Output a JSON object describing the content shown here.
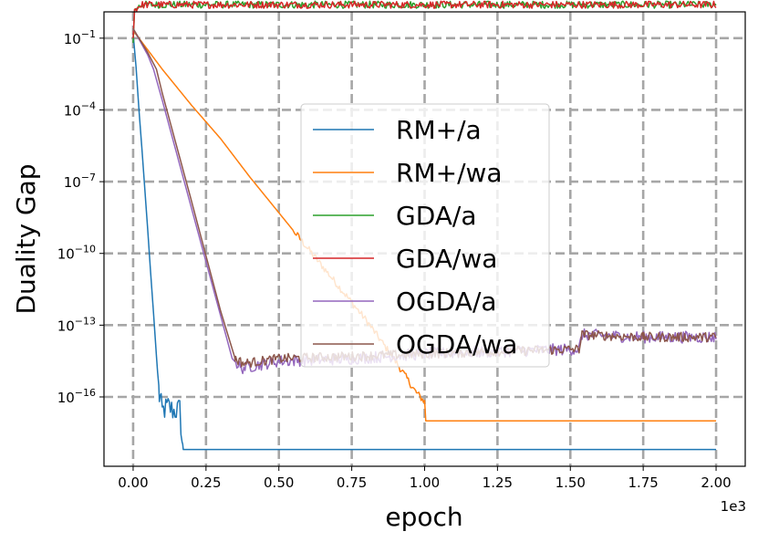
{
  "chart_data": {
    "type": "line",
    "xlabel": "epoch",
    "ylabel": "Duality Gap",
    "x_scale_label": "1e3",
    "yscale": "log",
    "xlim": [
      -0.1,
      2.1
    ],
    "ylim_log10": [
      -18.9,
      0.1
    ],
    "x_ticks": [
      0.0,
      0.25,
      0.5,
      0.75,
      1.0,
      1.25,
      1.5,
      1.75,
      2.0
    ],
    "x_tick_labels": [
      "0.00",
      "0.25",
      "0.50",
      "0.75",
      "1.00",
      "1.25",
      "1.50",
      "1.75",
      "2.00"
    ],
    "y_ticks_log10": [
      -1,
      -4,
      -7,
      -10,
      -13,
      -16
    ],
    "y_tick_labels": [
      {
        "base": "10",
        "exp": "−1"
      },
      {
        "base": "10",
        "exp": "−4"
      },
      {
        "base": "10",
        "exp": "−7"
      },
      {
        "base": "10",
        "exp": "−10"
      },
      {
        "base": "10",
        "exp": "−13"
      },
      {
        "base": "10",
        "exp": "−16"
      }
    ],
    "grid": true,
    "legend_position": "center",
    "series": [
      {
        "name": "RM+/a",
        "color": "#1f77b4",
        "log10_points": [
          [
            0.0,
            -0.8
          ],
          [
            0.01,
            -2.2
          ],
          [
            0.02,
            -4.0
          ],
          [
            0.03,
            -5.6
          ],
          [
            0.04,
            -7.3
          ],
          [
            0.05,
            -9.0
          ],
          [
            0.06,
            -10.8
          ],
          [
            0.07,
            -12.5
          ],
          [
            0.08,
            -14.3
          ],
          [
            0.09,
            -16.0
          ],
          [
            0.1,
            -16.6
          ],
          [
            0.12,
            -16.4
          ],
          [
            0.14,
            -16.6
          ],
          [
            0.16,
            -16.5
          ],
          [
            0.17,
            -18.2
          ],
          [
            2.0,
            -18.2
          ]
        ],
        "noise": [
          [
            0.085,
            0.17,
            0.5
          ]
        ]
      },
      {
        "name": "RM+/wa",
        "color": "#ff7f0e",
        "log10_points": [
          [
            0.0,
            -0.7
          ],
          [
            0.02,
            -1.0
          ],
          [
            0.1,
            -2.3
          ],
          [
            0.2,
            -3.8
          ],
          [
            0.3,
            -5.2
          ],
          [
            0.4,
            -6.8
          ],
          [
            0.5,
            -8.3
          ],
          [
            0.6,
            -9.8
          ],
          [
            0.7,
            -11.3
          ],
          [
            0.8,
            -12.8
          ],
          [
            0.9,
            -14.5
          ],
          [
            0.97,
            -15.8
          ],
          [
            1.0,
            -16.2
          ],
          [
            1.0,
            -17.0
          ],
          [
            2.0,
            -17.0
          ]
        ],
        "noise": [
          [
            0.55,
            1.0,
            0.15
          ]
        ]
      },
      {
        "name": "GDA/a",
        "color": "#2ca02c",
        "log10_points": [
          [
            0.0,
            -1.2
          ],
          [
            0.005,
            0.2
          ],
          [
            0.03,
            0.4
          ],
          [
            2.0,
            0.4
          ]
        ],
        "noise": [
          [
            0.01,
            2.0,
            0.15
          ]
        ]
      },
      {
        "name": "GDA/wa",
        "color": "#d62728",
        "log10_points": [
          [
            0.0,
            -1.0
          ],
          [
            0.005,
            0.2
          ],
          [
            0.03,
            0.4
          ],
          [
            2.0,
            0.4
          ]
        ],
        "noise": [
          [
            0.01,
            2.0,
            0.15
          ]
        ]
      },
      {
        "name": "OGDA/a",
        "color": "#9467bd",
        "log10_points": [
          [
            0.0,
            -0.6
          ],
          [
            0.05,
            -1.7
          ],
          [
            0.07,
            -2.3
          ],
          [
            0.1,
            -3.6
          ],
          [
            0.2,
            -8.1
          ],
          [
            0.3,
            -12.6
          ],
          [
            0.34,
            -14.4
          ],
          [
            0.37,
            -14.8
          ],
          [
            0.5,
            -14.5
          ],
          [
            0.75,
            -14.4
          ],
          [
            1.0,
            -14.2
          ],
          [
            1.25,
            -14.1
          ],
          [
            1.53,
            -14.0
          ],
          [
            1.54,
            -13.4
          ],
          [
            1.75,
            -13.5
          ],
          [
            2.0,
            -13.5
          ]
        ],
        "noise": [
          [
            0.35,
            2.0,
            0.25
          ]
        ]
      },
      {
        "name": "OGDA/wa",
        "color": "#8c564b",
        "log10_points": [
          [
            0.0,
            -0.6
          ],
          [
            0.05,
            -1.6
          ],
          [
            0.08,
            -2.3
          ],
          [
            0.1,
            -3.3
          ],
          [
            0.2,
            -7.8
          ],
          [
            0.3,
            -12.4
          ],
          [
            0.35,
            -14.4
          ],
          [
            0.38,
            -14.6
          ],
          [
            0.5,
            -14.4
          ],
          [
            0.75,
            -14.3
          ],
          [
            1.0,
            -14.2
          ],
          [
            1.25,
            -14.1
          ],
          [
            1.53,
            -14.0
          ],
          [
            1.54,
            -13.4
          ],
          [
            1.75,
            -13.5
          ],
          [
            2.0,
            -13.5
          ]
        ],
        "noise": [
          [
            0.35,
            2.0,
            0.2
          ]
        ]
      }
    ]
  }
}
